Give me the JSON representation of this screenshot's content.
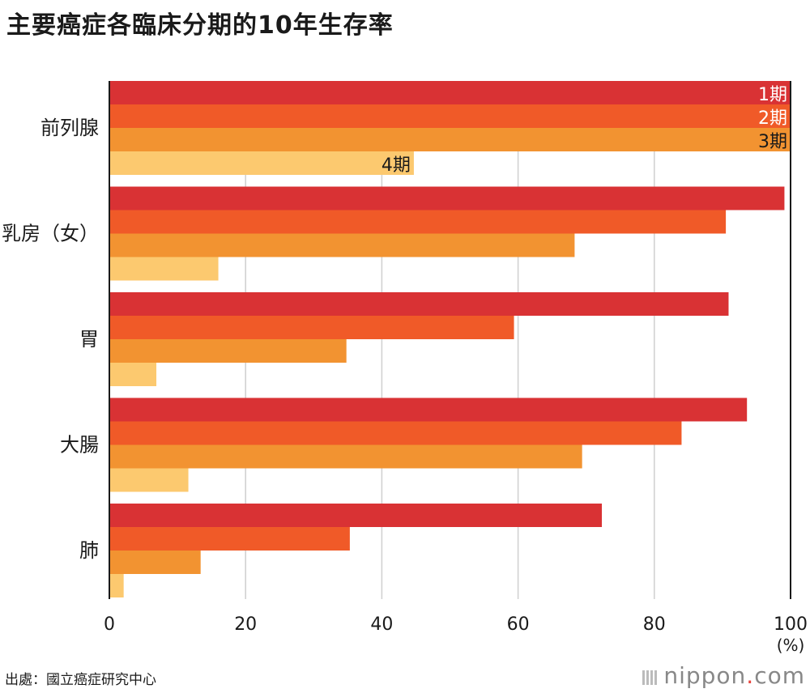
{
  "title": "主要癌症各臨床分期的10年生存率",
  "source": "出處：國立癌症研究中心",
  "logo": {
    "name": "nippon",
    "dot": ".",
    "tld": "com"
  },
  "chart_data": {
    "type": "bar",
    "orientation": "horizontal",
    "categories": [
      "前列腺",
      "乳房（女）",
      "胃",
      "大腸",
      "肺"
    ],
    "series": [
      {
        "name": "1期",
        "color": "#d93234",
        "values": [
          100,
          99.1,
          90.9,
          93.6,
          72.3
        ]
      },
      {
        "name": "2期",
        "color": "#f05a28",
        "values": [
          100,
          90.5,
          59.4,
          84.0,
          35.3
        ]
      },
      {
        "name": "3期",
        "color": "#f29331",
        "values": [
          100,
          68.3,
          34.8,
          69.4,
          13.4
        ]
      },
      {
        "name": "4期",
        "color": "#fcc96f",
        "values": [
          44.7,
          16.0,
          6.9,
          11.6,
          2.1
        ]
      }
    ],
    "series_labels_on_category": "前列腺",
    "xlim": [
      0,
      100
    ],
    "xticks": [
      "0",
      "20",
      "40",
      "60",
      "80",
      "100"
    ],
    "unit_label": "(%)",
    "grid": true
  }
}
